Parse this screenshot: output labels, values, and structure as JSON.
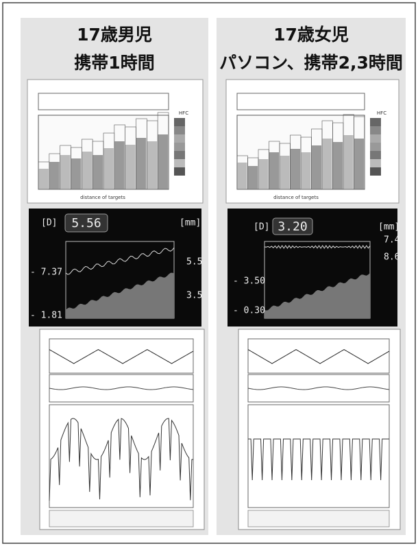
{
  "panels": [
    {
      "title": [
        "17歳男児",
        "携帯1時間"
      ],
      "report": {
        "x_label": "distance of targets",
        "legend_title": "HFC"
      },
      "monitor": {
        "left_unit": "[D]",
        "reading": "5.56",
        "right_unit": "[mm]",
        "left_labels": [
          "- 7.37",
          "- 1.81"
        ],
        "right_labels": [
          "5.5",
          "3.5"
        ]
      }
    },
    {
      "title": [
        "17歳女児",
        "パソコン、携帯2,3時間"
      ],
      "report": {
        "x_label": "distance of targets",
        "legend_title": "HFC"
      },
      "monitor": {
        "left_unit": "[D]",
        "reading": "3.20",
        "right_unit": "[mm]",
        "left_labels": [
          "- 3.50",
          "- 0.30"
        ],
        "right_labels": [
          "7.4",
          "8.6"
        ]
      }
    }
  ]
}
